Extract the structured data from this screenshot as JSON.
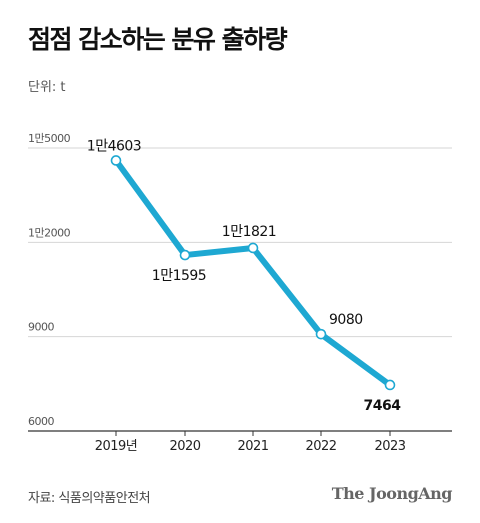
{
  "title": "점점 감소하는 분유 출하량",
  "unit_label": "단위: t",
  "source": "자료: 식품의약품안전처",
  "brand": "The JoongAng",
  "colors": {
    "line": "#1ea8d2",
    "grid": "#d6d6d6",
    "axis": "#333333"
  },
  "chart_data": {
    "type": "line",
    "categories": [
      "2019년",
      "2020",
      "2021",
      "2022",
      "2023"
    ],
    "values": [
      14603,
      11595,
      11821,
      9080,
      7464
    ],
    "data_labels": [
      "1만4603",
      "1만1595",
      "1만1821",
      "9080",
      "7464"
    ],
    "yticks": [
      6000,
      9000,
      12000,
      15000
    ],
    "ytick_labels": [
      "6000",
      "9000",
      "1만2000",
      "1만5000"
    ],
    "ylim": [
      6000,
      15000
    ],
    "title": "점점 감소하는 분유 출하량",
    "xlabel": "",
    "ylabel": "단위: t",
    "grid": true,
    "legend": "none"
  }
}
